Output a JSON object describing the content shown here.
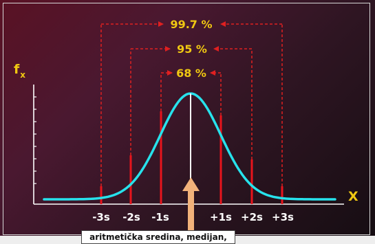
{
  "axes": {
    "y_label_main": "f",
    "y_label_sub": "x",
    "x_label": "X"
  },
  "intervals": [
    {
      "label": "68 %",
      "from": "-1s",
      "to": "+1s"
    },
    {
      "label": "95 %",
      "from": "-2s",
      "to": "+2s"
    },
    {
      "label": "99.7 %",
      "from": "-3s",
      "to": "+3s"
    }
  ],
  "ticks": [
    "-3s",
    "-2s",
    "-1s",
    "+1s",
    "+2s",
    "+3s"
  ],
  "caption": "aritmetička sredina, medijan, mod",
  "colors": {
    "curve": "#27e2ec",
    "bars": "#e8141c",
    "brackets": "#e02020",
    "percent_text": "#f0c812",
    "tick_text": "#ffffff",
    "mean_arrow": "#f2b27a"
  }
}
